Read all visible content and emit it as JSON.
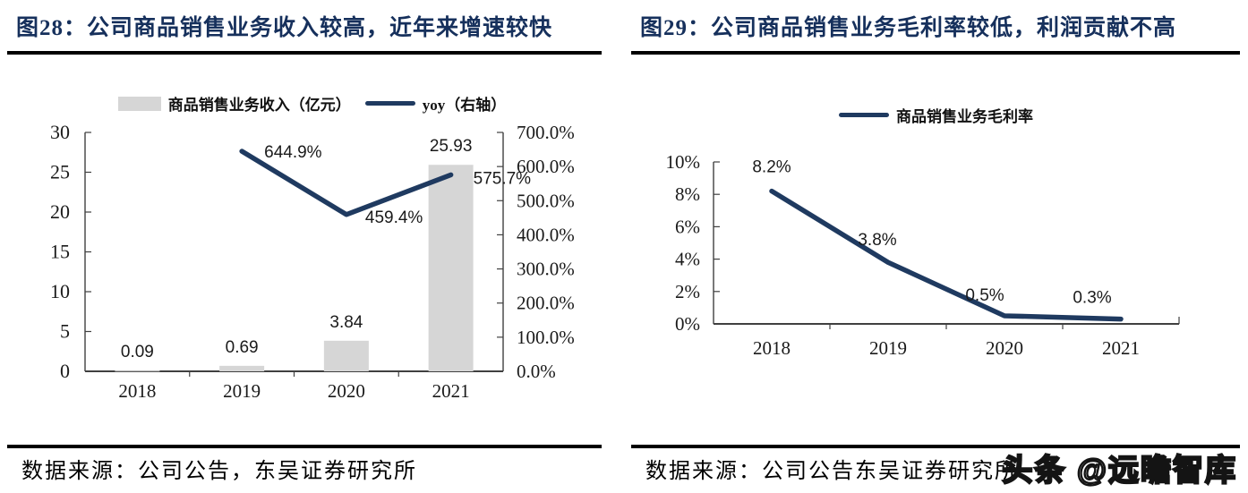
{
  "colors": {
    "navy": "#1f3a60",
    "title_navy": "#16305c",
    "bar_gray": "#d6d6d6",
    "axis": "#404040",
    "text": "#1a1a1a",
    "rule": "#000000"
  },
  "watermark": {
    "text": "头条 @远瞻智库"
  },
  "panels": [
    {
      "title": "图28：公司商品销售业务收入较高，近年来增速较快",
      "source": "数据来源：公司公告，东吴证券研究所"
    },
    {
      "title": "图29：公司商品销售业务毛利率较低，利润贡献不高",
      "source": "数据来源：公司公告东吴证券研究所"
    }
  ],
  "chart_data": [
    {
      "type": "bar+line",
      "title": "图28：公司商品销售业务收入较高，近年来增速较快",
      "categories": [
        "2018",
        "2019",
        "2020",
        "2021"
      ],
      "series": [
        {
          "name": "商品销售业务收入（亿元）",
          "type": "bar",
          "axis": "left",
          "values": [
            0.09,
            0.69,
            3.84,
            25.93
          ],
          "labels": [
            "0.09",
            "0.69",
            "3.84",
            "25.93"
          ],
          "color": "#d6d6d6"
        },
        {
          "name": "yoy（右轴）",
          "type": "line",
          "axis": "right",
          "values": [
            null,
            644.9,
            459.4,
            575.7
          ],
          "labels": [
            null,
            "644.9%",
            "459.4%",
            "575.7%"
          ],
          "color": "#1f3a60"
        }
      ],
      "left_axis": {
        "min": 0,
        "max": 30,
        "step": 5,
        "ticks": [
          "0",
          "5",
          "10",
          "15",
          "20",
          "25",
          "30"
        ]
      },
      "right_axis": {
        "min": 0,
        "max": 700,
        "step": 100,
        "ticks": [
          "0.0%",
          "100.0%",
          "200.0%",
          "300.0%",
          "400.0%",
          "500.0%",
          "600.0%",
          "700.0%"
        ]
      },
      "grid": false,
      "legend_position": "top"
    },
    {
      "type": "line",
      "title": "图29：公司商品销售业务毛利率较低，利润贡献不高",
      "categories": [
        "2018",
        "2019",
        "2020",
        "2021"
      ],
      "series": [
        {
          "name": "商品销售业务毛利率",
          "type": "line",
          "values": [
            8.2,
            3.8,
            0.5,
            0.3
          ],
          "labels": [
            "8.2%",
            "3.8%",
            "0.5%",
            "0.3%"
          ],
          "color": "#1f3a60"
        }
      ],
      "y_axis": {
        "min": 0,
        "max": 10,
        "step": 2,
        "ticks": [
          "0%",
          "2%",
          "4%",
          "6%",
          "8%",
          "10%"
        ]
      },
      "grid": false,
      "legend_position": "top"
    }
  ]
}
